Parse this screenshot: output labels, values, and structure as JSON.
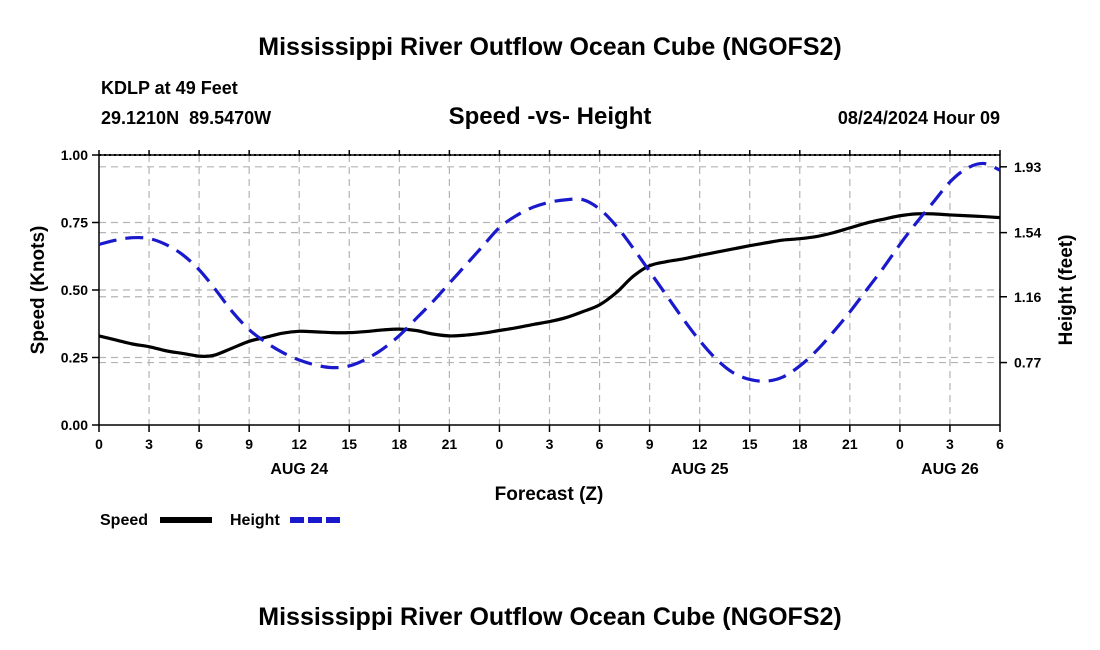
{
  "title": "Mississippi River Outflow Ocean Cube (NGOFS2)",
  "station": {
    "name_line": "KDLP at 49 Feet",
    "coords_line": "29.1210N  89.5470W"
  },
  "run_time": "08/24/2024 Hour 09",
  "footer_title": "Mississippi River Outflow Ocean Cube (NGOFS2)",
  "chart_data": {
    "type": "line",
    "title": "Speed -vs- Height",
    "xlabel": "Forecast (Z)",
    "ylabel": "Speed (Knots)",
    "y2label": "Height (feet)",
    "x_range": [
      0,
      54
    ],
    "ylim": [
      0,
      1.0
    ],
    "y2lim": [
      0.4,
      2.0
    ],
    "grid": true,
    "x_tick_hours": [
      0,
      3,
      6,
      9,
      12,
      15,
      18,
      21,
      24,
      27,
      30,
      33,
      36,
      39,
      42,
      45,
      48,
      51,
      54
    ],
    "x_tick_labels": [
      "0",
      "3",
      "6",
      "9",
      "12",
      "15",
      "18",
      "21",
      "0",
      "3",
      "6",
      "9",
      "12",
      "15",
      "18",
      "21",
      "0",
      "3",
      "6"
    ],
    "date_labels": [
      {
        "hour": 12,
        "label": "AUG 24"
      },
      {
        "hour": 36,
        "label": "AUG 25"
      },
      {
        "hour": 51,
        "label": "AUG 26"
      }
    ],
    "y_ticks": [
      0,
      0.25,
      0.5,
      0.75,
      1.0
    ],
    "y_tick_labels": [
      "0.00",
      "0.25",
      "0.50",
      "0.75",
      "1.00"
    ],
    "y2_ticks": [
      0.77,
      1.16,
      1.54,
      1.93
    ],
    "y2_tick_labels": [
      "0.77",
      "1.16",
      "1.54",
      "1.93"
    ],
    "legend": [
      {
        "label": "Speed",
        "color": "#000000",
        "style": "solid"
      },
      {
        "label": "Height",
        "color": "#1a1acc",
        "style": "dashed"
      }
    ],
    "series": [
      {
        "name": "Speed",
        "axis": "left",
        "color": "#000000",
        "x": [
          0,
          1,
          2,
          3,
          4,
          5,
          6,
          6.5,
          7,
          8,
          9,
          10,
          11,
          12,
          13,
          14,
          15,
          16,
          17,
          18,
          19,
          20,
          21,
          22,
          23,
          24,
          25,
          26,
          27,
          28,
          29,
          30,
          31,
          32,
          33,
          34,
          35,
          36,
          37,
          38,
          39,
          40,
          41,
          42,
          43,
          44,
          45,
          46,
          47,
          48,
          49,
          50,
          51,
          52,
          53,
          54
        ],
        "values": [
          0.33,
          0.315,
          0.3,
          0.29,
          0.275,
          0.265,
          0.255,
          0.255,
          0.26,
          0.285,
          0.31,
          0.325,
          0.34,
          0.347,
          0.345,
          0.342,
          0.342,
          0.346,
          0.352,
          0.355,
          0.35,
          0.337,
          0.33,
          0.333,
          0.34,
          0.35,
          0.36,
          0.372,
          0.383,
          0.398,
          0.42,
          0.445,
          0.49,
          0.55,
          0.59,
          0.605,
          0.615,
          0.628,
          0.64,
          0.652,
          0.664,
          0.675,
          0.685,
          0.69,
          0.698,
          0.712,
          0.73,
          0.748,
          0.762,
          0.775,
          0.782,
          0.782,
          0.778,
          0.775,
          0.772,
          0.768
        ]
      },
      {
        "name": "Height",
        "axis": "right",
        "color": "#1a1acc",
        "x": [
          0,
          1,
          2,
          3,
          4,
          5,
          6,
          7,
          8,
          9,
          10,
          11,
          12,
          13,
          14,
          15,
          16,
          17,
          18,
          19,
          20,
          21,
          22,
          23,
          24,
          25,
          26,
          27,
          28,
          29,
          30,
          31,
          32,
          33,
          34,
          35,
          36,
          37,
          38,
          39,
          40,
          41,
          42,
          43,
          44,
          45,
          46,
          47,
          48,
          49,
          50,
          51,
          52,
          53,
          54
        ],
        "values": [
          1.47,
          1.495,
          1.51,
          1.505,
          1.47,
          1.41,
          1.32,
          1.2,
          1.07,
          0.965,
          0.89,
          0.83,
          0.785,
          0.755,
          0.74,
          0.75,
          0.79,
          0.85,
          0.93,
          1.03,
          1.13,
          1.24,
          1.35,
          1.46,
          1.57,
          1.64,
          1.69,
          1.72,
          1.735,
          1.735,
          1.68,
          1.58,
          1.45,
          1.31,
          1.17,
          1.03,
          0.9,
          0.79,
          0.71,
          0.67,
          0.66,
          0.685,
          0.75,
          0.84,
          0.95,
          1.07,
          1.2,
          1.33,
          1.47,
          1.6,
          1.72,
          1.84,
          1.92,
          1.95,
          1.91
        ]
      }
    ]
  }
}
